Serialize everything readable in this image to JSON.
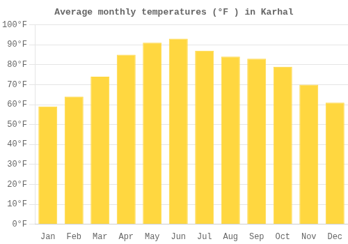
{
  "chart_data": {
    "type": "bar",
    "title": "Average monthly temperatures (°F ) in Karhal",
    "categories": [
      "Jan",
      "Feb",
      "Mar",
      "Apr",
      "May",
      "Jun",
      "Jul",
      "Aug",
      "Sep",
      "Oct",
      "Nov",
      "Dec"
    ],
    "values": [
      59,
      64,
      74,
      85,
      91,
      93,
      87,
      84,
      83,
      79,
      70,
      61
    ],
    "color": "#FFD740",
    "ylim": [
      0,
      100
    ],
    "yticks": [
      {
        "value": 0,
        "label": "0°F"
      },
      {
        "value": 10,
        "label": "10°F"
      },
      {
        "value": 20,
        "label": "20°F"
      },
      {
        "value": 30,
        "label": "30°F"
      },
      {
        "value": 40,
        "label": "40°F"
      },
      {
        "value": 50,
        "label": "50°F"
      },
      {
        "value": 60,
        "label": "60°F"
      },
      {
        "value": 70,
        "label": "70°F"
      },
      {
        "value": 80,
        "label": "80°F"
      },
      {
        "value": 90,
        "label": "90°F"
      },
      {
        "value": 100,
        "label": "100°F"
      }
    ],
    "grid": true
  }
}
